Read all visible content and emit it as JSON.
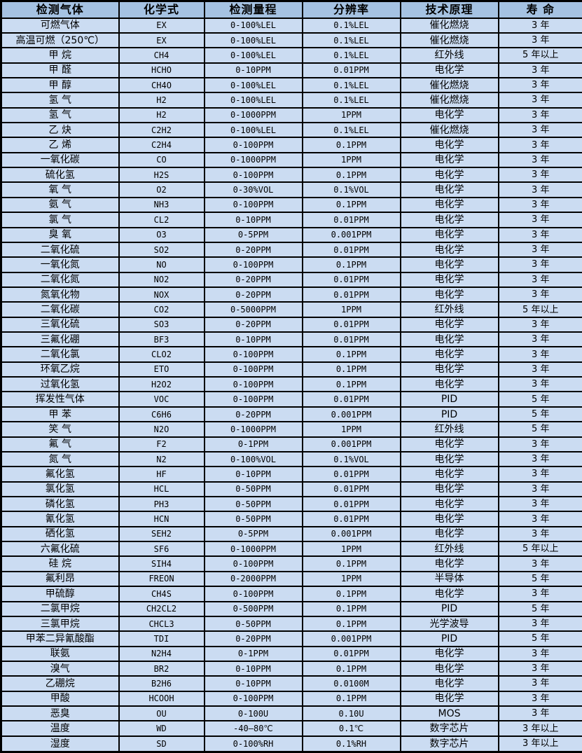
{
  "colors": {
    "header_bg": "#a5c2e2",
    "body_bg": "#cbdcf2",
    "border": "#000000",
    "text": "#000000"
  },
  "table": {
    "columns": [
      {
        "key": "gas",
        "label": "检测气体"
      },
      {
        "key": "formula",
        "label": "化学式"
      },
      {
        "key": "range",
        "label": "检测量程"
      },
      {
        "key": "resolution",
        "label": "分辨率"
      },
      {
        "key": "principle",
        "label": "技术原理"
      },
      {
        "key": "lifespan",
        "label": "寿 命"
      }
    ],
    "rows": [
      {
        "gas": "可燃气体",
        "formula": "EX",
        "range": "0-100%LEL",
        "resolution": "0.1%LEL",
        "principle": "催化燃烧",
        "lifespan": "3 年"
      },
      {
        "gas": "高温可燃（250℃）",
        "formula": "EX",
        "range": "0-100%LEL",
        "resolution": "0.1%LEL",
        "principle": "催化燃烧",
        "lifespan": "3 年"
      },
      {
        "gas": "甲 烷",
        "formula": "CH4",
        "range": "0-100%LEL",
        "resolution": "0.1%LEL",
        "principle": "红外线",
        "lifespan": "5 年以上"
      },
      {
        "gas": "甲 醛",
        "formula": "HCHO",
        "range": "0-10PPM",
        "resolution": "0.01PPM",
        "principle": "电化学",
        "lifespan": "3 年"
      },
      {
        "gas": "甲 醇",
        "formula": "CH4O",
        "range": "0-100%LEL",
        "resolution": "0.1%LEL",
        "principle": "催化燃烧",
        "lifespan": "3 年"
      },
      {
        "gas": "氢 气",
        "formula": "H2",
        "range": "0-100%LEL",
        "resolution": "0.1%LEL",
        "principle": "催化燃烧",
        "lifespan": "3 年"
      },
      {
        "gas": "氢 气",
        "formula": "H2",
        "range": "0-1000PPM",
        "resolution": "1PPM",
        "principle": "电化学",
        "lifespan": "3 年"
      },
      {
        "gas": "乙 炔",
        "formula": "C2H2",
        "range": "0-100%LEL",
        "resolution": "0.1%LEL",
        "principle": "催化燃烧",
        "lifespan": "3 年"
      },
      {
        "gas": "乙 烯",
        "formula": "C2H4",
        "range": "0-100PPM",
        "resolution": "0.1PPM",
        "principle": "电化学",
        "lifespan": "3 年"
      },
      {
        "gas": "一氧化碳",
        "formula": "CO",
        "range": "0-1000PPM",
        "resolution": "1PPM",
        "principle": "电化学",
        "lifespan": "3 年"
      },
      {
        "gas": "硫化氢",
        "formula": "H2S",
        "range": "0-100PPM",
        "resolution": "0.1PPM",
        "principle": "电化学",
        "lifespan": "3 年"
      },
      {
        "gas": "氧 气",
        "formula": "O2",
        "range": "0-30%VOL",
        "resolution": "0.1%VOL",
        "principle": "电化学",
        "lifespan": "3 年"
      },
      {
        "gas": "氨 气",
        "formula": "NH3",
        "range": "0-100PPM",
        "resolution": "0.1PPM",
        "principle": "电化学",
        "lifespan": "3 年"
      },
      {
        "gas": "氯 气",
        "formula": "CL2",
        "range": "0-10PPM",
        "resolution": "0.01PPM",
        "principle": "电化学",
        "lifespan": "3 年"
      },
      {
        "gas": "臭 氧",
        "formula": "O3",
        "range": "0-5PPM",
        "resolution": "0.001PPM",
        "principle": "电化学",
        "lifespan": "3 年"
      },
      {
        "gas": "二氧化硫",
        "formula": "SO2",
        "range": "0-20PPM",
        "resolution": "0.01PPM",
        "principle": "电化学",
        "lifespan": "3 年"
      },
      {
        "gas": "一氧化氮",
        "formula": "NO",
        "range": "0-100PPM",
        "resolution": "0.1PPM",
        "principle": "电化学",
        "lifespan": "3 年"
      },
      {
        "gas": "二氧化氮",
        "formula": "NO2",
        "range": "0-20PPM",
        "resolution": "0.01PPM",
        "principle": "电化学",
        "lifespan": "3 年"
      },
      {
        "gas": "氮氧化物",
        "formula": "NOX",
        "range": "0-20PPM",
        "resolution": "0.01PPM",
        "principle": "电化学",
        "lifespan": "3 年"
      },
      {
        "gas": "二氧化碳",
        "formula": "CO2",
        "range": "0-5000PPM",
        "resolution": "1PPM",
        "principle": "红外线",
        "lifespan": "5 年以上"
      },
      {
        "gas": "三氧化硫",
        "formula": "SO3",
        "range": "0-20PPM",
        "resolution": "0.01PPM",
        "principle": "电化学",
        "lifespan": "3 年"
      },
      {
        "gas": "三氟化硼",
        "formula": "BF3",
        "range": "0-10PPM",
        "resolution": "0.01PPM",
        "principle": "电化学",
        "lifespan": "3 年"
      },
      {
        "gas": "二氧化氯",
        "formula": "CLO2",
        "range": "0-100PPM",
        "resolution": "0.1PPM",
        "principle": "电化学",
        "lifespan": "3 年"
      },
      {
        "gas": "环氧乙烷",
        "formula": "ETO",
        "range": "0-100PPM",
        "resolution": "0.1PPM",
        "principle": "电化学",
        "lifespan": "3 年"
      },
      {
        "gas": "过氧化氢",
        "formula": "H2O2",
        "range": "0-100PPM",
        "resolution": "0.1PPM",
        "principle": "电化学",
        "lifespan": "3 年"
      },
      {
        "gas": "挥发性气体",
        "formula": "VOC",
        "range": "0-100PPM",
        "resolution": "0.01PPM",
        "principle": "PID",
        "lifespan": "5 年"
      },
      {
        "gas": "甲 苯",
        "formula": "C6H6",
        "range": "0-20PPM",
        "resolution": "0.001PPM",
        "principle": "PID",
        "lifespan": "5 年"
      },
      {
        "gas": "笑 气",
        "formula": "N2O",
        "range": "0-1000PPM",
        "resolution": "1PPM",
        "principle": "红外线",
        "lifespan": "5 年"
      },
      {
        "gas": "氟 气",
        "formula": "F2",
        "range": "0-1PPM",
        "resolution": "0.001PPM",
        "principle": "电化学",
        "lifespan": "3 年"
      },
      {
        "gas": "氮 气",
        "formula": "N2",
        "range": "0-100%VOL",
        "resolution": "0.1%VOL",
        "principle": "电化学",
        "lifespan": "3 年"
      },
      {
        "gas": "氟化氢",
        "formula": "HF",
        "range": "0-10PPM",
        "resolution": "0.01PPM",
        "principle": "电化学",
        "lifespan": "3 年"
      },
      {
        "gas": "氯化氢",
        "formula": "HCL",
        "range": "0-50PPM",
        "resolution": "0.01PPM",
        "principle": "电化学",
        "lifespan": "3 年"
      },
      {
        "gas": "磷化氢",
        "formula": "PH3",
        "range": "0-50PPM",
        "resolution": "0.01PPM",
        "principle": "电化学",
        "lifespan": "3 年"
      },
      {
        "gas": "氰化氢",
        "formula": "HCN",
        "range": "0-50PPM",
        "resolution": "0.01PPM",
        "principle": "电化学",
        "lifespan": "3 年"
      },
      {
        "gas": "硒化氢",
        "formula": "SEH2",
        "range": "0-5PPM",
        "resolution": "0.001PPM",
        "principle": "电化学",
        "lifespan": "3 年"
      },
      {
        "gas": "六氟化硫",
        "formula": "SF6",
        "range": "0-1000PPM",
        "resolution": "1PPM",
        "principle": "红外线",
        "lifespan": "5 年以上"
      },
      {
        "gas": "硅 烷",
        "formula": "SIH4",
        "range": "0-100PPM",
        "resolution": "0.1PPM",
        "principle": "电化学",
        "lifespan": "3 年"
      },
      {
        "gas": "氟利昂",
        "formula": "FREON",
        "range": "0-2000PPM",
        "resolution": "1PPM",
        "principle": "半导体",
        "lifespan": "5 年"
      },
      {
        "gas": "甲硫醇",
        "formula": "CH4S",
        "range": "0-100PPM",
        "resolution": "0.1PPM",
        "principle": "电化学",
        "lifespan": "3 年"
      },
      {
        "gas": "二氯甲烷",
        "formula": "CH2CL2",
        "range": "0-500PPM",
        "resolution": "0.1PPM",
        "principle": "PID",
        "lifespan": "5 年"
      },
      {
        "gas": "三氯甲烷",
        "formula": "CHCL3",
        "range": "0-50PPM",
        "resolution": "0.1PPM",
        "principle": "光学波导",
        "lifespan": "3 年"
      },
      {
        "gas": "甲苯二异氰酸酯",
        "formula": "TDI",
        "range": "0-20PPM",
        "resolution": "0.001PPM",
        "principle": "PID",
        "lifespan": "5 年"
      },
      {
        "gas": "联氨",
        "formula": "N2H4",
        "range": "0-1PPM",
        "resolution": "0.01PPM",
        "principle": "电化学",
        "lifespan": "3 年"
      },
      {
        "gas": "溴气",
        "formula": "BR2",
        "range": "0-10PPM",
        "resolution": "0.1PPM",
        "principle": "电化学",
        "lifespan": "3 年"
      },
      {
        "gas": "乙硼烷",
        "formula": "B2H6",
        "range": "0-10PPM",
        "resolution": "0.0100M",
        "principle": "电化学",
        "lifespan": "3 年"
      },
      {
        "gas": "甲酸",
        "formula": "HCOOH",
        "range": "0-100PPM",
        "resolution": "0.1PPM",
        "principle": "电化学",
        "lifespan": "3 年"
      },
      {
        "gas": "恶臭",
        "formula": "OU",
        "range": "0-100U",
        "resolution": "0.10U",
        "principle": "MOS",
        "lifespan": "3 年"
      },
      {
        "gas": "温度",
        "formula": "WD",
        "range": "-40—80℃",
        "resolution": "0.1℃",
        "principle": "数字芯片",
        "lifespan": "3 年以上"
      },
      {
        "gas": "湿度",
        "formula": "SD",
        "range": "0-100%RH",
        "resolution": "0.1%RH",
        "principle": "数字芯片",
        "lifespan": "3 年以上"
      }
    ]
  }
}
